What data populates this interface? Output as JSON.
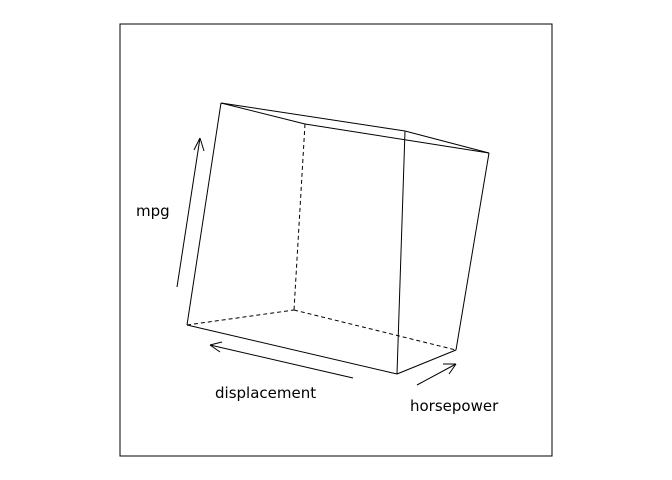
{
  "chart_data": {
    "type": "scatter",
    "projection": "3d-cloud",
    "title": "",
    "xlabel": "displacement",
    "ylabel": "horsepower",
    "zlabel": "mpg",
    "axes": [
      "displacement",
      "horsepower",
      "mpg"
    ],
    "ranges": {
      "displacement": [
        68,
        455
      ],
      "horsepower": [
        46,
        230
      ],
      "mpg": [
        9,
        46.6
      ]
    },
    "box": true,
    "grid": false,
    "marker": "+",
    "colors": {
      "points": "#1f87e5",
      "box": "#000000",
      "frame": "#000000"
    },
    "x": [],
    "y": [],
    "z": []
  }
}
